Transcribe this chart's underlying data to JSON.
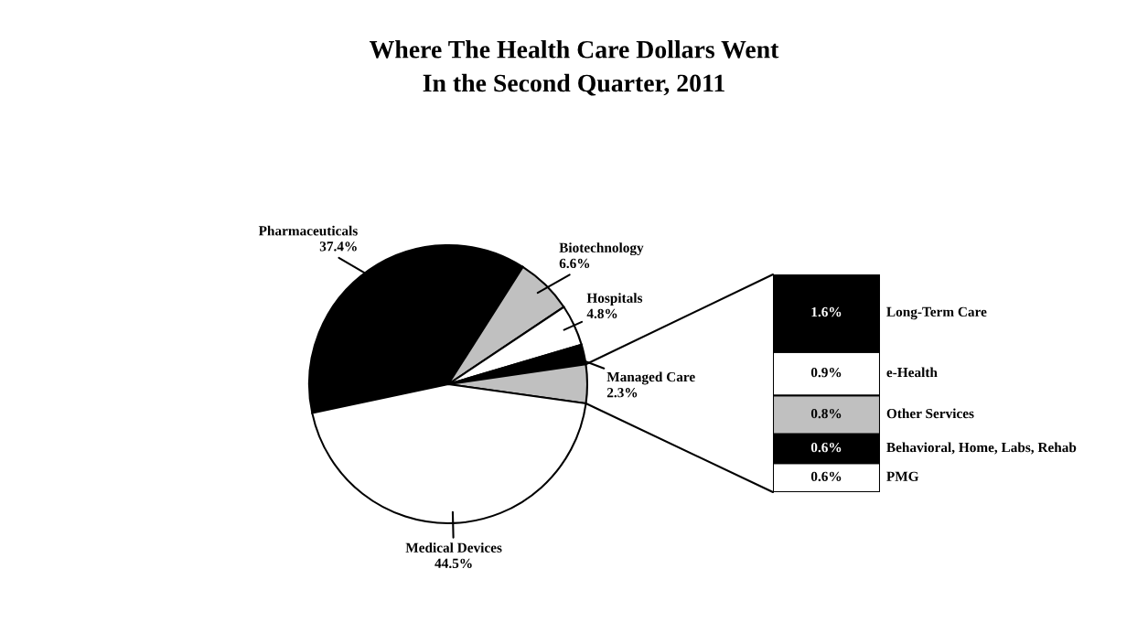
{
  "chart_data": [
    {
      "type": "pie",
      "title": "Where The Health Care Dollars Went\nIn the Second Quarter, 2011",
      "categories": [
        "Pharmaceuticals",
        "Biotechnology",
        "Hospitals",
        "Managed Care",
        null,
        "Medical Devices"
      ],
      "values": [
        37.4,
        6.6,
        4.8,
        2.3,
        4.5,
        44.5
      ],
      "value_labels": [
        "37.4%",
        "6.6%",
        "4.8%",
        "2.3%",
        null,
        "44.5%"
      ],
      "colors": [
        "#000000",
        "#c0c0c0",
        "#ffffff",
        "#000000",
        "#c0c0c0",
        "#ffffff"
      ]
    },
    {
      "type": "bar",
      "stacked": true,
      "categories": [
        null
      ],
      "series": [
        {
          "name": "PMG",
          "color": "#ffffff",
          "values": [
            0.6
          ],
          "value_labels": [
            "0.6%"
          ]
        },
        {
          "name": "Behavioral, Home,\nLabs, Rehab",
          "color": "#000000",
          "values": [
            0.6
          ],
          "value_labels": [
            "0.6%"
          ]
        },
        {
          "name": "Other Services",
          "color": "#c0c0c0",
          "values": [
            0.8
          ],
          "value_labels": [
            "0.8%"
          ]
        },
        {
          "name": "e-Health",
          "color": "#ffffff",
          "values": [
            0.9
          ],
          "value_labels": [
            "0.9%"
          ]
        },
        {
          "name": "Long-Term Care",
          "color": "#000000",
          "values": [
            1.6
          ],
          "value_labels": [
            "1.6%"
          ]
        }
      ]
    }
  ]
}
